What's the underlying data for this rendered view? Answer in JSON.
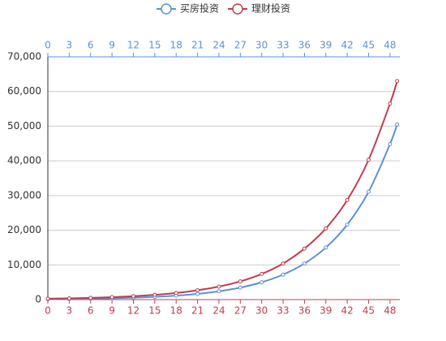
{
  "chart_data": {
    "type": "line",
    "series": [
      {
        "name": "买房投资",
        "color": "#5a92d6",
        "x": [
          0,
          3,
          6,
          9,
          12,
          15,
          18,
          21,
          24,
          27,
          30,
          33,
          36,
          39,
          42,
          45,
          48,
          49
        ],
        "values": [
          130,
          190,
          270,
          380,
          550,
          800,
          1150,
          1650,
          2400,
          3450,
          5000,
          7200,
          10400,
          15000,
          21600,
          31100,
          44800,
          50500
        ]
      },
      {
        "name": "理财投资",
        "color": "#c23c50",
        "x": [
          0,
          3,
          6,
          9,
          12,
          15,
          18,
          21,
          24,
          27,
          30,
          33,
          36,
          39,
          42,
          45,
          48,
          49
        ],
        "values": [
          250,
          350,
          500,
          700,
          980,
          1370,
          1900,
          2700,
          3750,
          5250,
          7400,
          10400,
          14700,
          20500,
          28700,
          40300,
          56500,
          63000
        ]
      }
    ],
    "xlim": [
      0,
      49.4
    ],
    "xticks": [
      0,
      3,
      6,
      9,
      12,
      15,
      18,
      21,
      24,
      27,
      30,
      33,
      36,
      39,
      42,
      45,
      48
    ],
    "ylim": [
      0,
      70000
    ],
    "yticks": [
      0,
      {
        "value": 10000,
        "label": "10,000"
      },
      {
        "value": 20000,
        "label": "20,000"
      },
      {
        "value": 30000,
        "label": "30,000"
      },
      {
        "value": 40000,
        "label": "40,000"
      },
      {
        "value": 50000,
        "label": "50,000"
      },
      {
        "value": 60000,
        "label": "60,000"
      },
      {
        "value": 70000,
        "label": "70,000"
      }
    ],
    "grid": true
  }
}
